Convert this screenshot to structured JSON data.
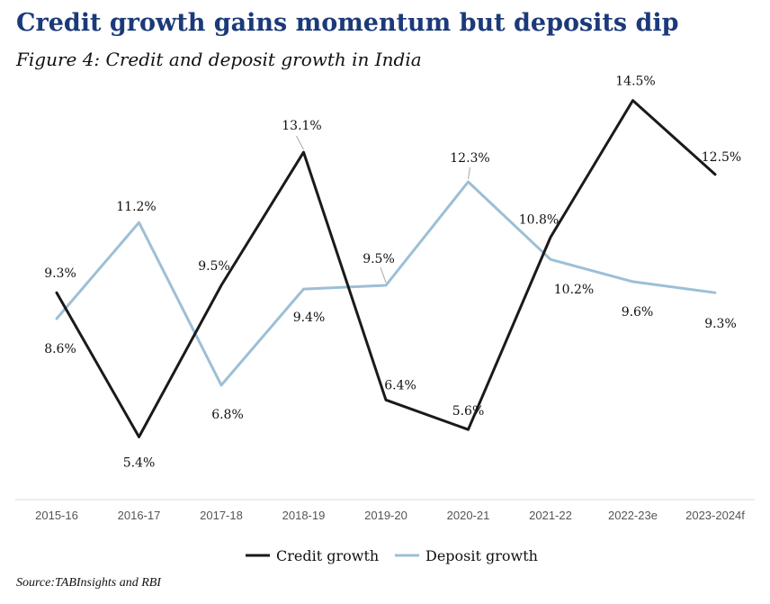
{
  "header": {
    "title": "Credit growth gains momentum but deposits dip",
    "subtitle": "Figure 4: Credit and deposit growth in India"
  },
  "footer": {
    "source": "Source:TABInsights  and RBI"
  },
  "colors": {
    "title": "#1b3a7a",
    "credit": "#1a1a1a",
    "deposit": "#9dbfd6",
    "axis": "#d9d9d9"
  },
  "chart_data": {
    "type": "line",
    "title": "Credit growth gains momentum but deposits dip",
    "subtitle": "Figure 4: Credit and deposit growth in India",
    "categories": [
      "2015-16",
      "2016-17",
      "2017-18",
      "2018-19",
      "2019-20",
      "2020-21",
      "2021-22",
      "2022-23e",
      "2023-2024f"
    ],
    "series": [
      {
        "name": "Credit growth",
        "values": [
          9.3,
          5.4,
          9.5,
          13.1,
          6.4,
          5.6,
          10.8,
          14.5,
          12.5
        ],
        "labels": [
          "9.3%",
          "5.4%",
          "9.5%",
          "13.1%",
          "6.4%",
          "5.6%",
          "10.8%",
          "14.5%",
          "12.5%"
        ]
      },
      {
        "name": "Deposit growth",
        "values": [
          8.6,
          11.2,
          6.8,
          9.4,
          9.5,
          12.3,
          10.2,
          9.6,
          9.3
        ],
        "labels": [
          "8.6%",
          "11.2%",
          "6.8%",
          "9.4%",
          "9.5%",
          "12.3%",
          "10.2%",
          "9.6%",
          "9.3%"
        ]
      }
    ],
    "ylim": [
      3,
      16
    ],
    "grid": false,
    "legend": "bottom-center",
    "yaxis_visible": false
  }
}
